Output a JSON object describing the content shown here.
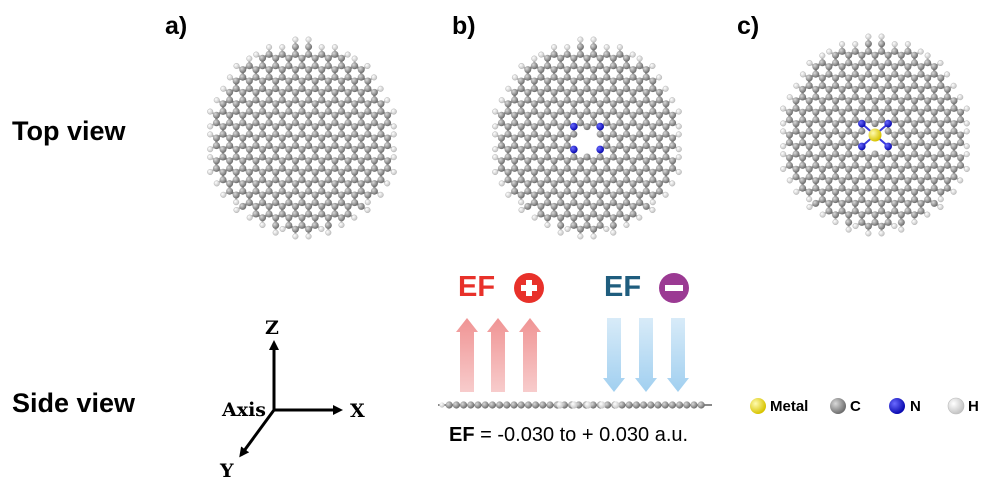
{
  "row_labels": {
    "top": "Top view",
    "side": "Side view"
  },
  "panels": [
    {
      "label": "a)",
      "variant": "pristine"
    },
    {
      "label": "b)",
      "variant": "n4-vacancy"
    },
    {
      "label": "c)",
      "variant": "metal-n4"
    }
  ],
  "electric_field": {
    "positive": {
      "label": "EF",
      "color": "#e8312a",
      "sign_icon": "plus-circle-icon"
    },
    "negative": {
      "label": "EF",
      "color": "#1f5d7e",
      "sign_icon": "minus-circle-icon",
      "icon_color": "#9b3a93"
    },
    "formula_bold": "EF",
    "formula_rest": " = -0.030 to + 0.030 a.u."
  },
  "axis": {
    "title": "Axis",
    "x": "X",
    "y": "Y",
    "z": "Z"
  },
  "legend": [
    {
      "label": "Metal",
      "color": "#f2e21a"
    },
    {
      "label": "C",
      "color": "#8c8c8c"
    },
    {
      "label": "N",
      "color": "#1f1fdc"
    },
    {
      "label": "H",
      "color": "#f4f4f4"
    }
  ]
}
